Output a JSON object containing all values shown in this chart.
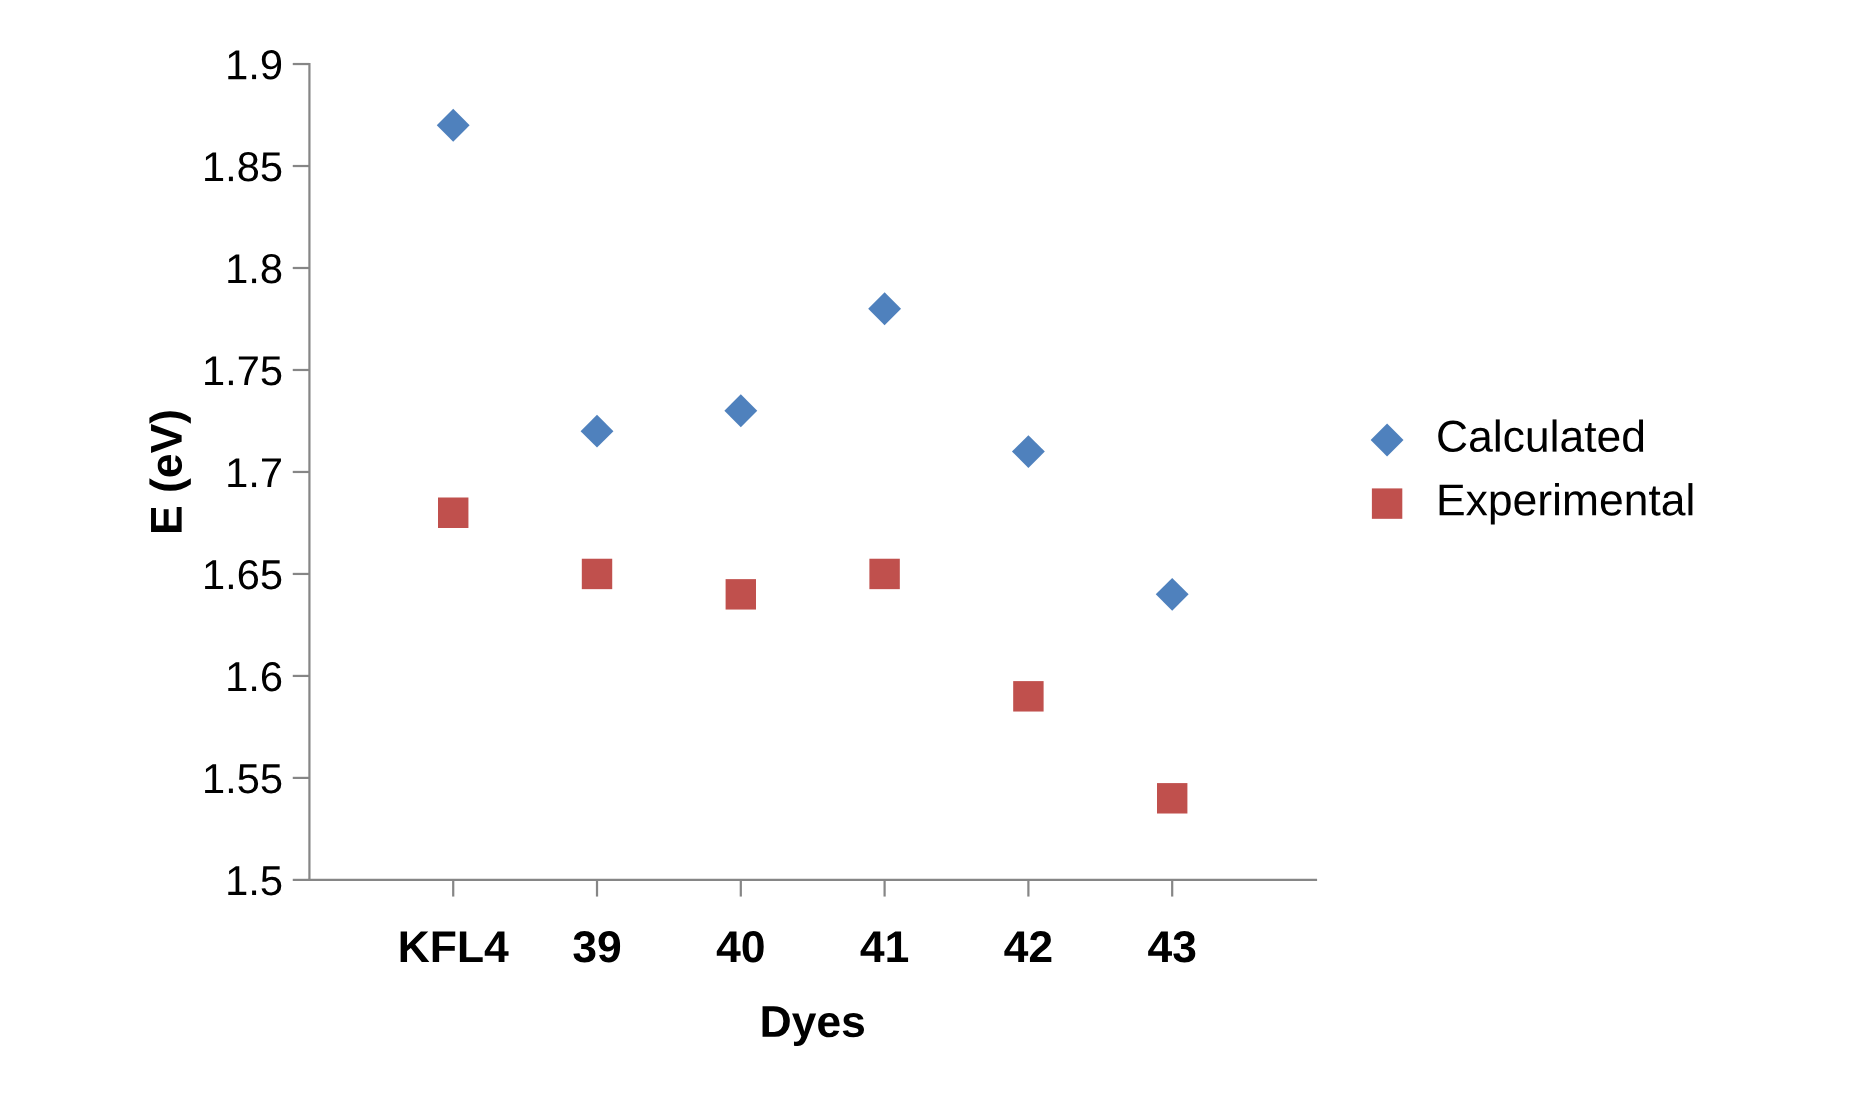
{
  "chart_data": {
    "type": "scatter",
    "xlabel": "Dyes",
    "ylabel": "E (eV)",
    "categories": [
      "KFL4",
      "39",
      "40",
      "41",
      "42",
      "43"
    ],
    "series": [
      {
        "name": "Calculated",
        "color": "#4f81bd",
        "marker": "diamond",
        "values": [
          1.87,
          1.72,
          1.73,
          1.78,
          1.71,
          1.64
        ]
      },
      {
        "name": "Experimental",
        "color": "#c0504d",
        "marker": "square",
        "values": [
          1.68,
          1.65,
          1.64,
          1.65,
          1.59,
          1.54
        ]
      }
    ],
    "ylim": [
      1.5,
      1.9
    ],
    "yticks": [
      1.5,
      1.55,
      1.6,
      1.65,
      1.7,
      1.75,
      1.8,
      1.85,
      1.9
    ],
    "grid": false,
    "legend": "right"
  }
}
